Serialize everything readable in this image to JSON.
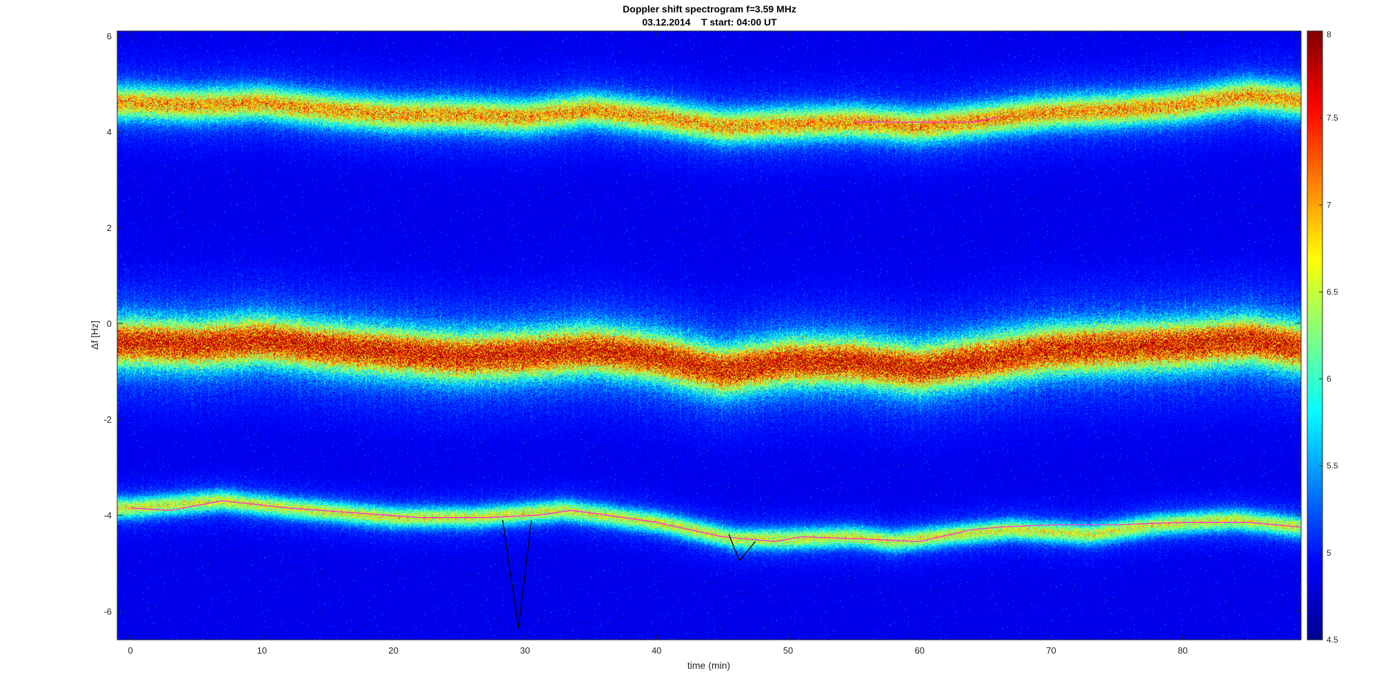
{
  "chart_data": {
    "type": "heatmap",
    "title": "Doppler shift spectrogram f=3.59 MHz",
    "subtitle": "03.12.2014    T start: 04:00 UT",
    "xlabel": "time (min)",
    "ylabel": "Δf [Hz]",
    "xlim": [
      -1,
      89
    ],
    "ylim": [
      -6.6,
      6.1
    ],
    "xticks": [
      0,
      10,
      20,
      30,
      40,
      50,
      60,
      70,
      80
    ],
    "yticks": [
      6,
      4,
      2,
      0,
      -2,
      -4,
      -6
    ],
    "colorbar": {
      "colormap": "jet",
      "range": [
        4.5,
        8
      ],
      "ticks": [
        8,
        7.5,
        7,
        6.5,
        6,
        5.5,
        5,
        4.5
      ]
    },
    "bands": [
      {
        "name": "upper trace",
        "strength": 0.75,
        "width": 0.22,
        "t": [
          0,
          5,
          10,
          15,
          20,
          25,
          30,
          35,
          40,
          45,
          50,
          55,
          60,
          65,
          70,
          75,
          80,
          85,
          89
        ],
        "f": [
          4.6,
          4.55,
          4.6,
          4.45,
          4.35,
          4.35,
          4.3,
          4.45,
          4.3,
          4.1,
          4.15,
          4.2,
          4.1,
          4.25,
          4.4,
          4.45,
          4.55,
          4.75,
          4.65
        ]
      },
      {
        "name": "middle trace",
        "strength": 1.0,
        "width": 0.32,
        "t": [
          0,
          5,
          10,
          15,
          20,
          25,
          30,
          35,
          40,
          45,
          50,
          55,
          60,
          65,
          70,
          75,
          80,
          85,
          89
        ],
        "f": [
          -0.4,
          -0.45,
          -0.35,
          -0.5,
          -0.6,
          -0.7,
          -0.65,
          -0.55,
          -0.7,
          -1.0,
          -0.8,
          -0.8,
          -0.95,
          -0.75,
          -0.55,
          -0.5,
          -0.45,
          -0.35,
          -0.5
        ]
      },
      {
        "name": "lower trace",
        "strength": 0.6,
        "width": 0.14,
        "t": [
          0,
          7,
          12,
          20,
          26,
          33,
          40,
          46,
          50,
          55,
          58,
          63,
          67,
          73,
          78,
          84,
          89
        ],
        "f": [
          -3.85,
          -3.7,
          -3.85,
          -4.05,
          -4.05,
          -3.9,
          -4.15,
          -4.5,
          -4.5,
          -4.45,
          -4.55,
          -4.4,
          -4.3,
          -4.4,
          -4.2,
          -4.1,
          -4.25
        ]
      }
    ],
    "overlays": [
      {
        "name": "magenta track",
        "color": "#ff2bd6",
        "t": [
          0,
          3,
          7,
          12,
          17,
          22,
          27,
          31,
          33.5,
          35,
          40,
          45,
          49,
          51,
          56,
          60,
          64,
          66,
          70,
          75,
          80,
          85,
          89
        ],
        "f": [
          -3.85,
          -3.9,
          -3.7,
          -3.85,
          -3.95,
          -4.05,
          -4.05,
          -4.0,
          -3.9,
          -3.95,
          -4.15,
          -4.45,
          -4.55,
          -4.45,
          -4.5,
          -4.55,
          -4.3,
          -4.25,
          -4.2,
          -4.2,
          -4.15,
          -4.15,
          -4.25
        ]
      },
      {
        "name": "magenta track upper",
        "color": "#ff2bd6",
        "t": [
          55,
          60,
          64,
          66
        ],
        "f": [
          4.2,
          4.2,
          4.2,
          4.3
        ]
      },
      {
        "name": "black spike",
        "color": "#000000",
        "t": [
          28.3,
          29.5,
          30.5
        ],
        "f": [
          -4.1,
          -6.35,
          -4.1
        ]
      },
      {
        "name": "black dip",
        "color": "#000000",
        "t": [
          45.5,
          46.3,
          47.5
        ],
        "f": [
          -4.4,
          -4.95,
          -4.55
        ]
      }
    ]
  }
}
